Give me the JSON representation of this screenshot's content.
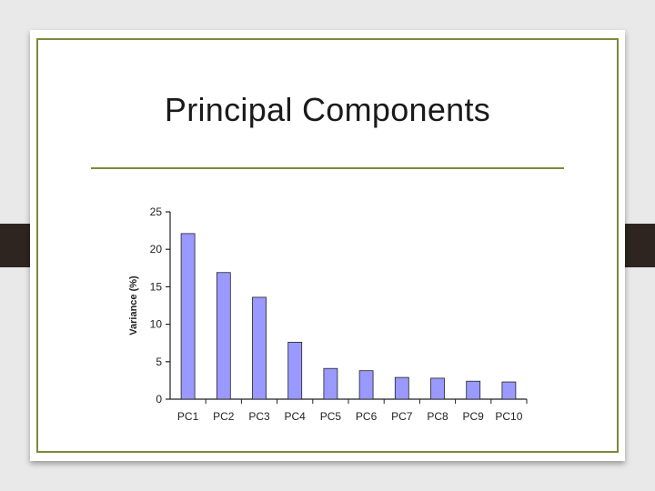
{
  "slide": {
    "title": "Principal Components"
  },
  "colors": {
    "accent": "#7c8a3a",
    "bar_fill": "#9999ff",
    "bar_stroke": "#222222"
  },
  "chart_data": {
    "type": "bar",
    "categories": [
      "PC1",
      "PC2",
      "PC3",
      "PC4",
      "PC5",
      "PC6",
      "PC7",
      "PC8",
      "PC9",
      "PC10"
    ],
    "values": [
      22.1,
      16.9,
      13.6,
      7.6,
      4.1,
      3.8,
      2.9,
      2.8,
      2.4,
      2.3
    ],
    "title": "",
    "xlabel": "",
    "ylabel": "Variance (%)",
    "ylim": [
      0,
      25
    ],
    "yticks": [
      0,
      5,
      10,
      15,
      20,
      25
    ],
    "grid": false,
    "legend": "none"
  }
}
